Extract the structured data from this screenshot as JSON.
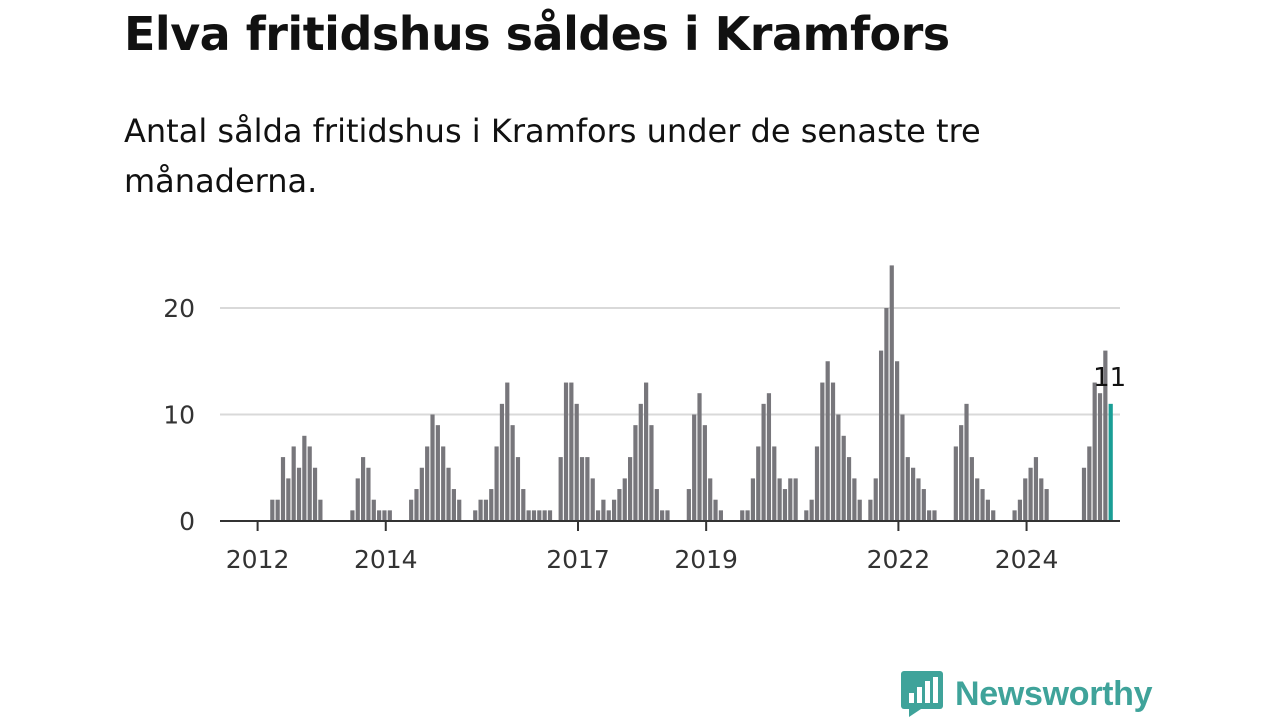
{
  "title": "Elva fritidshus såldes i Kramfors",
  "subtitle": "Antal sålda fritidshus i Kramfors under de senaste tre månaderna.",
  "brand": {
    "name": "Newsworthy",
    "icon": "newsworthy-bar-chart-icon",
    "color": "#3fa39a"
  },
  "colors": {
    "bar": "#77767b",
    "highlight": "#1a9e96",
    "grid": "#d9d9d9",
    "axis": "#333333"
  },
  "chart_data": {
    "type": "bar",
    "ylim": [
      0,
      24
    ],
    "yticks": [
      "0",
      "10",
      "20"
    ],
    "xticks": [
      {
        "label": "2012",
        "year": 2012
      },
      {
        "label": "2014",
        "year": 2014
      },
      {
        "label": "2017",
        "year": 2017
      },
      {
        "label": "2019",
        "year": 2019
      },
      {
        "label": "2022",
        "year": 2022
      },
      {
        "label": "2024",
        "year": 2024
      }
    ],
    "grid": true,
    "start_month": "2012-01",
    "values": [
      0,
      0,
      0,
      0,
      0,
      0,
      0,
      0,
      2,
      2,
      6,
      4,
      7,
      5,
      8,
      7,
      5,
      2,
      0,
      0,
      0,
      0,
      0,
      1,
      4,
      6,
      5,
      2,
      1,
      1,
      1,
      0,
      0,
      0,
      2,
      3,
      5,
      7,
      10,
      9,
      7,
      5,
      3,
      2,
      0,
      0,
      1,
      2,
      2,
      3,
      7,
      11,
      13,
      9,
      6,
      3,
      1,
      1,
      1,
      1,
      1,
      0,
      6,
      13,
      13,
      11,
      6,
      6,
      4,
      1,
      2,
      1,
      2,
      3,
      4,
      6,
      9,
      11,
      13,
      9,
      3,
      1,
      1,
      0,
      0,
      0,
      3,
      10,
      12,
      9,
      4,
      2,
      1,
      0,
      0,
      0,
      1,
      1,
      4,
      7,
      11,
      12,
      7,
      4,
      3,
      4,
      4,
      0,
      1,
      2,
      7,
      13,
      15,
      13,
      10,
      8,
      6,
      4,
      2,
      0,
      2,
      4,
      16,
      20,
      24,
      15,
      10,
      6,
      5,
      4,
      3,
      1,
      1,
      0,
      0,
      0,
      7,
      9,
      11,
      6,
      4,
      3,
      2,
      1,
      0,
      0,
      0,
      1,
      2,
      4,
      5,
      6,
      4,
      3,
      0,
      0,
      0,
      0,
      0,
      0,
      5,
      7,
      13,
      12,
      16,
      11
    ],
    "highlight_last": true,
    "data_label": "11"
  }
}
